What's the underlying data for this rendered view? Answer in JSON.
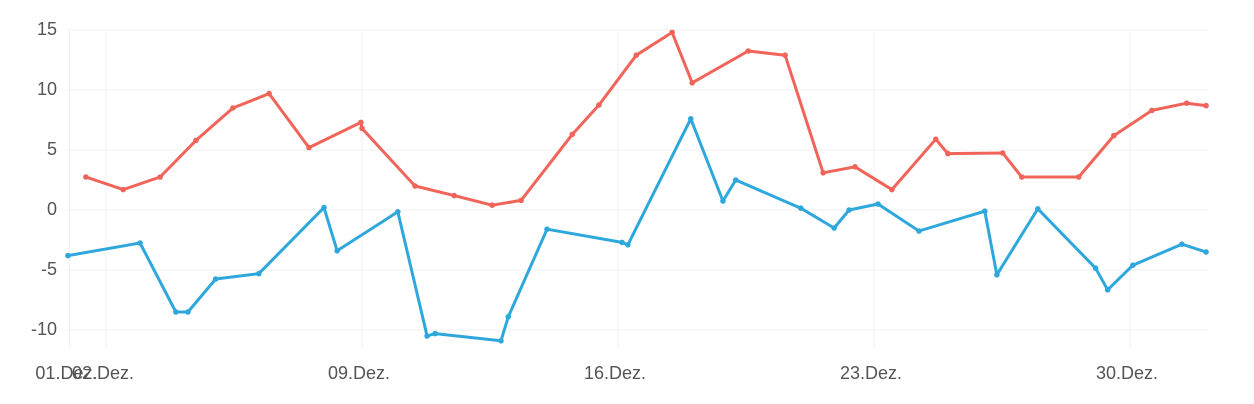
{
  "chart_data": {
    "type": "line",
    "xlim": [
      0.95,
      32.15
    ],
    "xticks": [
      {
        "value": 1,
        "label": "01.Dez."
      },
      {
        "value": 2,
        "label": "02.Dez."
      },
      {
        "value": 9,
        "label": "09.Dez."
      },
      {
        "value": 16,
        "label": "16.Dez."
      },
      {
        "value": 23,
        "label": "23.Dez."
      },
      {
        "value": 30,
        "label": "30.Dez."
      }
    ],
    "ylim": [
      -11.5,
      15
    ],
    "yticks": [
      -10,
      -5,
      0,
      5,
      10,
      15
    ],
    "grid": true,
    "series": [
      {
        "color": "#f0645a",
        "x": [
          1.45,
          2.47,
          3.48,
          4.46,
          5.47,
          6.46,
          7.55,
          8.97,
          9.0,
          10.45,
          11.52,
          12.56,
          13.35,
          14.75,
          15.48,
          16.5,
          17.48,
          18.03,
          19.56,
          20.57,
          21.61,
          22.48,
          23.49,
          24.69,
          25.02,
          26.52,
          27.04,
          28.6,
          29.56,
          30.6,
          31.55,
          32.08
        ],
        "values": [
          2.75,
          1.7,
          2.75,
          5.8,
          8.5,
          9.7,
          5.2,
          7.3,
          6.8,
          2.0,
          1.2,
          0.4,
          0.8,
          6.3,
          8.75,
          12.9,
          14.8,
          10.6,
          13.25,
          12.9,
          3.1,
          3.6,
          1.7,
          5.9,
          4.7,
          4.75,
          2.75,
          2.75,
          6.2,
          8.3,
          8.9,
          8.7
        ]
      },
      {
        "color": "#2ea8dc",
        "x": [
          0.96,
          2.93,
          3.91,
          4.24,
          5.0,
          6.18,
          7.96,
          8.32,
          9.98,
          10.78,
          11.0,
          12.8,
          13.0,
          14.06,
          16.11,
          16.27,
          17.99,
          18.87,
          19.22,
          21.0,
          21.91,
          22.32,
          23.11,
          24.23,
          26.03,
          26.36,
          27.48,
          29.06,
          29.39,
          30.08,
          31.42,
          32.08
        ],
        "values": [
          -3.8,
          -2.75,
          -8.5,
          -8.5,
          -5.75,
          -5.3,
          0.2,
          -3.4,
          -0.15,
          -10.5,
          -10.3,
          -10.9,
          -8.9,
          -1.6,
          -2.7,
          -2.9,
          7.6,
          0.75,
          2.5,
          0.15,
          -1.5,
          0.0,
          0.5,
          -1.75,
          -0.1,
          -5.4,
          0.1,
          -4.85,
          -6.65,
          -4.6,
          -2.85,
          -3.5
        ]
      }
    ]
  }
}
